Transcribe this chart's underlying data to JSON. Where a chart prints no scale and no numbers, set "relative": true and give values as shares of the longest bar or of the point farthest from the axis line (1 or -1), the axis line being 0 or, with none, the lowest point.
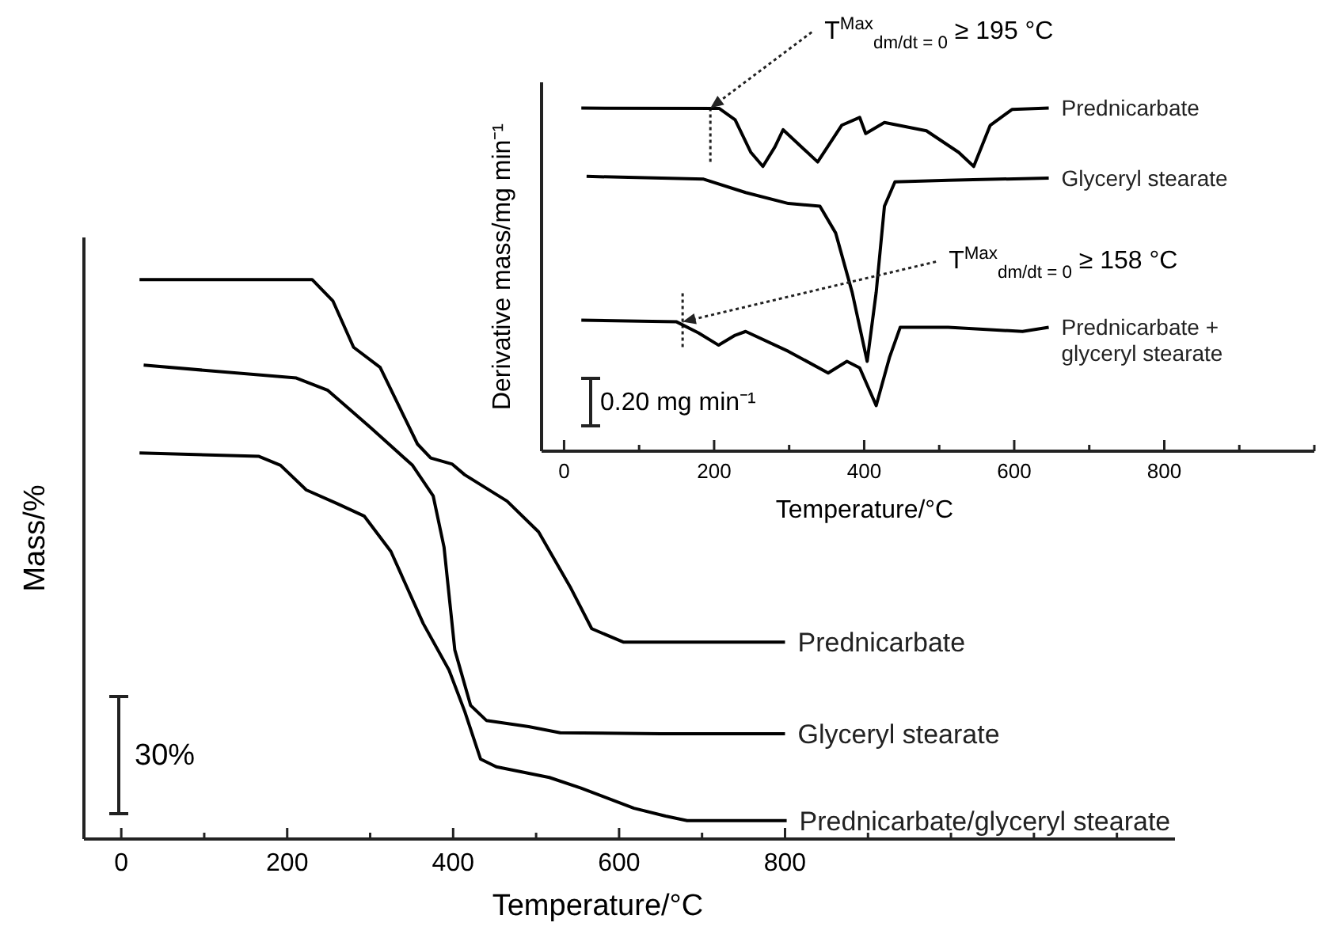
{
  "chart_data": [
    {
      "type": "line",
      "xlabel": "Temperature/°C",
      "ylabel": "Mass/%",
      "relative": true,
      "xlim": [
        -45,
        1270
      ],
      "xticks": [
        0,
        {
          "value": 100,
          "label": null
        },
        200,
        {
          "value": 300,
          "label": null
        },
        400,
        {
          "value": 500,
          "label": null
        },
        600,
        {
          "value": 700,
          "label": null
        },
        800,
        {
          "value": 900,
          "label": null
        },
        {
          "value": 1000,
          "label": null
        },
        {
          "value": 1100,
          "label": null
        },
        {
          "value": 1200,
          "label": null
        }
      ],
      "series": [
        {
          "name": "Prednicarbate",
          "color": "#000000",
          "x": [
            22,
            230,
            255,
            280,
            312,
            357,
            373,
            399,
            414,
            465,
            503,
            542,
            567,
            605,
            700,
            800
          ],
          "values": [
            1.0,
            1.0,
            0.962,
            0.879,
            0.843,
            0.706,
            0.681,
            0.67,
            0.651,
            0.604,
            0.549,
            0.448,
            0.376,
            0.352,
            0.352,
            0.352
          ]
        },
        {
          "name": "Glyceryl stearate",
          "color": "#000000",
          "x": [
            27,
            211,
            249,
            300,
            351,
            376,
            389,
            402,
            421,
            440,
            491,
            529,
            650,
            800
          ],
          "values": [
            0.847,
            0.824,
            0.802,
            0.736,
            0.668,
            0.613,
            0.522,
            0.338,
            0.239,
            0.212,
            0.201,
            0.19,
            0.188,
            0.188
          ]
        },
        {
          "name": "Prednicarbate/glyceryl stearate",
          "color": "#000000",
          "x": [
            22,
            166,
            192,
            223,
            261,
            293,
            325,
            364,
            395,
            414,
            433,
            452,
            516,
            554,
            618,
            656,
            682,
            802
          ],
          "values": [
            0.69,
            0.684,
            0.668,
            0.624,
            0.599,
            0.577,
            0.514,
            0.385,
            0.302,
            0.228,
            0.143,
            0.129,
            0.11,
            0.091,
            0.055,
            0.041,
            0.033,
            0.033
          ]
        }
      ],
      "annotations": [
        "30%"
      ],
      "legend": false,
      "grid": false,
      "marker": "none",
      "line_style": "solid"
    },
    {
      "type": "line",
      "xlabel": "Temperature/°C",
      "ylabel": "Derivative mass/mg min⁻¹",
      "relative": true,
      "xlim": [
        -30,
        1000
      ],
      "xticks": [
        0,
        {
          "value": 100,
          "label": null
        },
        200,
        {
          "value": 300,
          "label": null
        },
        400,
        {
          "value": 500,
          "label": null
        },
        600,
        {
          "value": 700,
          "label": null
        },
        800,
        {
          "value": 900,
          "label": null
        },
        {
          "value": 1000,
          "label": null
        }
      ],
      "series": [
        {
          "name": "Prednicarbate",
          "color": "#000000",
          "x": [
            23,
            207,
            228,
            249,
            265,
            281,
            292,
            338,
            370,
            394,
            402,
            427,
            483,
            526,
            546,
            568,
            597,
            646
          ],
          "values": [
            1.0,
            0.999,
            0.966,
            0.871,
            0.83,
            0.887,
            0.937,
            0.843,
            0.95,
            0.973,
            0.926,
            0.958,
            0.934,
            0.871,
            0.83,
            0.95,
            0.996,
            1.0
          ]
        },
        {
          "name": "Glyceryl stearate",
          "color": "#000000",
          "x": [
            30,
            186,
            242,
            299,
            341,
            362,
            384,
            404,
            416,
            427,
            441,
            512,
            646
          ],
          "values": [
            0.801,
            0.793,
            0.754,
            0.722,
            0.714,
            0.636,
            0.463,
            0.262,
            0.463,
            0.714,
            0.785,
            0.79,
            0.796
          ]
        },
        {
          "name": "Prednicarbate + glyceryl stearate",
          "color": "#000000",
          "x": [
            23,
            150,
            179,
            206,
            228,
            242,
            299,
            352,
            377,
            394,
            416,
            434,
            448,
            512,
            611,
            646
          ],
          "values": [
            0.382,
            0.377,
            0.345,
            0.309,
            0.338,
            0.349,
            0.291,
            0.228,
            0.262,
            0.243,
            0.133,
            0.275,
            0.361,
            0.361,
            0.349,
            0.361
          ]
        }
      ],
      "annotations": [
        {
          "text": "T$^{Max}$$_{dm/dt = 0}$ ≥ 195 °C",
          "x": 195,
          "y": 1.0
        },
        {
          "text": "T$^{Max}$$_{dm/dt = 0}$ ≥ 158 °C",
          "x": 158,
          "y": 0.377
        },
        "0.20 mg min⁻¹"
      ],
      "ref_lines": [
        {
          "axis": "x",
          "value": 195,
          "line_style": "dotted"
        },
        {
          "axis": "x",
          "value": 158,
          "line_style": "dotted"
        }
      ],
      "legend": false,
      "grid": false,
      "marker": "none",
      "line_style": "solid"
    }
  ]
}
